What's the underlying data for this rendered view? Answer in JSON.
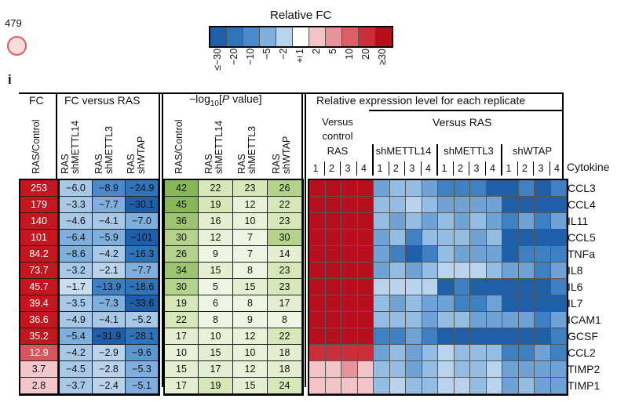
{
  "page_number": "479",
  "panel_label": "i",
  "legend": {
    "title": "Relative FC",
    "ticks": [
      "≤−30",
      "−20",
      "−10",
      "−5",
      "−2",
      "±1",
      "2",
      "5",
      "10",
      "20",
      "≥30"
    ],
    "colors": [
      "#1f5fa8",
      "#2f73b9",
      "#4a8acb",
      "#7fafdc",
      "#b9d3ec",
      "#ffffff",
      "#f2c4c8",
      "#e8939b",
      "#dc5f66",
      "#cd2f3a",
      "#b80f1f"
    ]
  },
  "groups": {
    "fc": "FC",
    "fc_vs_ras": "FC versus RAS",
    "pvalue_prefix": "−log",
    "pvalue_sub": "10",
    "pvalue_bracket": "[",
    "pvalue_italic": "P",
    "pvalue_suffix": " value]",
    "relative_expression": "Relative expression level for each replicate"
  },
  "column_headers": {
    "fc": [
      "RAS/Control"
    ],
    "fc_vs_ras": [
      "RAS\nshMETTL14",
      "RAS\nshMETTL3",
      "RAS\nshWTAP"
    ],
    "pvalue": [
      "RAS/Control",
      "RAS\nshMETTL14",
      "RAS\nshMETTL3",
      "RAS\nshWTAP"
    ]
  },
  "heatmap_headers": {
    "versus_control": "Versus\ncontrol",
    "versus_ras": "Versus RAS",
    "groups": [
      "RAS",
      "shMETTL14",
      "shMETTL3",
      "shWTAP"
    ],
    "replicates": [
      "1",
      "2",
      "3",
      "4"
    ]
  },
  "cytokine_header": "Cytokine",
  "rows": [
    {
      "cytokine": "CCL3",
      "fc": "253",
      "fc_vs_ras": [
        "−6.0",
        "−8.9",
        "−24.9"
      ],
      "pvalue": [
        "42",
        "22",
        "23",
        "26"
      ]
    },
    {
      "cytokine": "CCL4",
      "fc": "179",
      "fc_vs_ras": [
        "−3.3",
        "−7.7",
        "−30.1"
      ],
      "pvalue": [
        "45",
        "19",
        "12",
        "22"
      ]
    },
    {
      "cytokine": "IL11",
      "fc": "140",
      "fc_vs_ras": [
        "−4.6",
        "−4.1",
        "−7.0"
      ],
      "pvalue": [
        "36",
        "16",
        "10",
        "23"
      ]
    },
    {
      "cytokine": "CCL5",
      "fc": "101",
      "fc_vs_ras": [
        "−6.4",
        "−5.9",
        "−101"
      ],
      "pvalue": [
        "30",
        "12",
        "7",
        "30"
      ]
    },
    {
      "cytokine": "TNFa",
      "fc": "84.2",
      "fc_vs_ras": [
        "−8.6",
        "−4.2",
        "−16.3"
      ],
      "pvalue": [
        "26",
        "9",
        "7",
        "14"
      ]
    },
    {
      "cytokine": "IL8",
      "fc": "73.7",
      "fc_vs_ras": [
        "−3.2",
        "−2.1",
        "−7.7"
      ],
      "pvalue": [
        "34",
        "15",
        "8",
        "23"
      ]
    },
    {
      "cytokine": "IL6",
      "fc": "45.7",
      "fc_vs_ras": [
        "−1.7",
        "−13.9",
        "−18.6"
      ],
      "pvalue": [
        "30",
        "5",
        "15",
        "23"
      ]
    },
    {
      "cytokine": "IL7",
      "fc": "39.4",
      "fc_vs_ras": [
        "−3.5",
        "−7.3",
        "−33.6"
      ],
      "pvalue": [
        "19",
        "6",
        "8",
        "17"
      ]
    },
    {
      "cytokine": "ICAM1",
      "fc": "36.6",
      "fc_vs_ras": [
        "−4.9",
        "−4.1",
        "−5.2"
      ],
      "pvalue": [
        "22",
        "8",
        "9",
        "8"
      ]
    },
    {
      "cytokine": "GCSF",
      "fc": "35.2",
      "fc_vs_ras": [
        "−5.4",
        "−31.9",
        "−28.1"
      ],
      "pvalue": [
        "17",
        "10",
        "12",
        "22"
      ]
    },
    {
      "cytokine": "CCL2",
      "fc": "12.9",
      "fc_vs_ras": [
        "−4.2",
        "−2.9",
        "−9.6"
      ],
      "pvalue": [
        "10",
        "15",
        "10",
        "18"
      ]
    },
    {
      "cytokine": "TIMP2",
      "fc": "3.7",
      "fc_vs_ras": [
        "−4.5",
        "−2.8",
        "−5.3"
      ],
      "pvalue": [
        "15",
        "17",
        "12",
        "18"
      ]
    },
    {
      "cytokine": "TIMP1",
      "fc": "2.8",
      "fc_vs_ras": [
        "−3.7",
        "−2.4",
        "−5.1"
      ],
      "pvalue": [
        "17",
        "19",
        "15",
        "24"
      ]
    }
  ],
  "cell_colors": {
    "fc": [
      "#c4161f",
      "#c4161f",
      "#c4161f",
      "#c4161f",
      "#c4161f",
      "#c4161f",
      "#c4161f",
      "#c4161f",
      "#c4161f",
      "#c4161f",
      "#d9545c",
      "#f3c7cb",
      "#f3c7cb"
    ],
    "fc_vs_ras": [
      [
        "#a8c8e8",
        "#4a8acb",
        "#2f73b9"
      ],
      [
        "#a8c8e8",
        "#7fafdc",
        "#1f5fa8"
      ],
      [
        "#a8c8e8",
        "#a8c8e8",
        "#7fafdc"
      ],
      [
        "#7fafdc",
        "#7fafdc",
        "#1f5fa8"
      ],
      [
        "#7fafdc",
        "#a8c8e8",
        "#2f73b9"
      ],
      [
        "#a8c8e8",
        "#b9d3ec",
        "#7fafdc"
      ],
      [
        "#c9ddf1",
        "#3f80c3",
        "#2f73b9"
      ],
      [
        "#a8c8e8",
        "#7fafdc",
        "#1f5fa8"
      ],
      [
        "#a8c8e8",
        "#a8c8e8",
        "#a8c8e8"
      ],
      [
        "#7fafdc",
        "#1f5fa8",
        "#2f73b9"
      ],
      [
        "#a8c8e8",
        "#b9d3ec",
        "#5d97d0"
      ],
      [
        "#a8c8e8",
        "#b9d3ec",
        "#7fafdc"
      ],
      [
        "#a8c8e8",
        "#b9d3ec",
        "#7fafdc"
      ]
    ],
    "pvalue": [
      [
        "#86b955",
        "#d6e8b8",
        "#d6e8b8",
        "#b3d38b"
      ],
      [
        "#86b955",
        "#d6e8b8",
        "#e8f2d8",
        "#d6e8b8"
      ],
      [
        "#9bc66f",
        "#e3efd0",
        "#e8f2d8",
        "#d6e8b8"
      ],
      [
        "#b3d38b",
        "#e8f2d8",
        "#eef5e2",
        "#b3d38b"
      ],
      [
        "#b3d38b",
        "#eef5e2",
        "#eef5e2",
        "#e3efd0"
      ],
      [
        "#9bc66f",
        "#e3efd0",
        "#eef5e2",
        "#d6e8b8"
      ],
      [
        "#b3d38b",
        "#eef5e2",
        "#e3efd0",
        "#d6e8b8"
      ],
      [
        "#d6e8b8",
        "#eef5e2",
        "#eef5e2",
        "#e3efd0"
      ],
      [
        "#d6e8b8",
        "#eef5e2",
        "#eef5e2",
        "#eef5e2"
      ],
      [
        "#e3efd0",
        "#e8f2d8",
        "#e8f2d8",
        "#d6e8b8"
      ],
      [
        "#e8f2d8",
        "#e3efd0",
        "#e8f2d8",
        "#e3efd0"
      ],
      [
        "#e3efd0",
        "#e3efd0",
        "#e8f2d8",
        "#e3efd0"
      ],
      [
        "#e3efd0",
        "#d6e8b8",
        "#e3efd0",
        "#d6e8b8"
      ]
    ]
  },
  "heatmap": {
    "colors": [
      "#b80f1f",
      "#cd2f3a",
      "#e8939b",
      "#f2c4c8",
      "#f8e3e5",
      "#ffffff",
      "#dbe8f6",
      "#b9d3ec",
      "#94bde4",
      "#6fa3d6",
      "#3f80c3",
      "#1f5fa8"
    ],
    "levels": [
      [
        0,
        0,
        0,
        0,
        9,
        8,
        8,
        9,
        10,
        10,
        10,
        11,
        11,
        10,
        11,
        10
      ],
      [
        0,
        0,
        0,
        0,
        8,
        8,
        7,
        8,
        9,
        9,
        9,
        9,
        11,
        11,
        11,
        11
      ],
      [
        0,
        0,
        0,
        0,
        8,
        9,
        8,
        9,
        8,
        9,
        8,
        9,
        10,
        9,
        10,
        9
      ],
      [
        0,
        0,
        0,
        0,
        9,
        8,
        10,
        8,
        8,
        8,
        9,
        8,
        11,
        11,
        11,
        11
      ],
      [
        0,
        0,
        0,
        0,
        9,
        10,
        11,
        10,
        8,
        9,
        9,
        9,
        11,
        10,
        10,
        10
      ],
      [
        0,
        0,
        0,
        0,
        9,
        8,
        9,
        8,
        7,
        7,
        7,
        8,
        9,
        9,
        10,
        9
      ],
      [
        0,
        0,
        0,
        0,
        7,
        7,
        7,
        7,
        11,
        10,
        11,
        11,
        11,
        11,
        11,
        10
      ],
      [
        0,
        0,
        0,
        0,
        8,
        9,
        8,
        9,
        9,
        10,
        10,
        9,
        11,
        11,
        11,
        11
      ],
      [
        0,
        0,
        0,
        0,
        8,
        8,
        8,
        9,
        8,
        8,
        9,
        9,
        9,
        9,
        10,
        9
      ],
      [
        0,
        0,
        0,
        0,
        10,
        10,
        9,
        10,
        11,
        11,
        11,
        11,
        11,
        11,
        11,
        10
      ],
      [
        1,
        1,
        1,
        1,
        9,
        8,
        9,
        8,
        7,
        8,
        8,
        8,
        10,
        10,
        9,
        10
      ],
      [
        3,
        3,
        2,
        3,
        8,
        8,
        9,
        8,
        7,
        8,
        8,
        7,
        9,
        9,
        9,
        9
      ],
      [
        3,
        3,
        3,
        3,
        8,
        7,
        8,
        8,
        7,
        7,
        8,
        7,
        9,
        8,
        9,
        9
      ]
    ]
  }
}
